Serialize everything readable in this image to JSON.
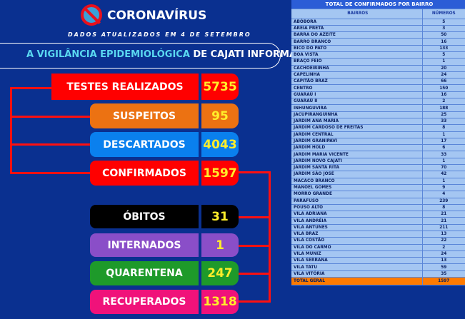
{
  "header": {
    "title": "CORONAVÍRUS",
    "subtitle": "DADOS ATUALIZADOS EM 4 DE SETEMBRO",
    "banner_highlight": "A VIGILÂNCIA EPIDEMIOLÓGICA",
    "banner_rest": " DE CAJATI INFORMA:"
  },
  "stats": [
    {
      "label": "TESTES REALIZADOS",
      "value": "5735",
      "color": "#ff0000"
    },
    {
      "label": "SUSPEITOS",
      "value": "95",
      "color": "#ec7212"
    },
    {
      "label": "DESCARTADOS",
      "value": "4043",
      "color": "#0a80ee"
    },
    {
      "label": "CONFIRMADOS",
      "value": "1597",
      "color": "#ff0000"
    },
    {
      "label": "ÓBITOS",
      "value": "31",
      "color": "#000000"
    },
    {
      "label": "INTERNADOS",
      "value": "1",
      "color": "#8a4ec8"
    },
    {
      "label": "QUARENTENA",
      "value": "247",
      "color": "#1e9a2a"
    },
    {
      "label": "RECUPERADOS",
      "value": "1318",
      "color": "#f0127a"
    }
  ],
  "table": {
    "title": "TOTAL DE CONFIRMADOS POR BAIRRO",
    "col_name": "BAIRROS",
    "col_num": "NÚMEROS",
    "rows": [
      [
        "ABÓBORA",
        "5"
      ],
      [
        "AREIA PRETA",
        "3"
      ],
      [
        "BARRA DO AZEITE",
        "50"
      ],
      [
        "BARRO BRANCO",
        "16"
      ],
      [
        "BICO DO PATO",
        "133"
      ],
      [
        "BOA VISTA",
        "5"
      ],
      [
        "BRAÇO FEIO",
        "1"
      ],
      [
        "CACHOEIRINHA",
        "20"
      ],
      [
        "CAPELINHA",
        "24"
      ],
      [
        "CAPITÃO BRAZ",
        "66"
      ],
      [
        "CENTRO",
        "150"
      ],
      [
        "GUARAÚ I",
        "16"
      ],
      [
        "GUARAÚ II",
        "2"
      ],
      [
        "INHUNGUVIRA",
        "188"
      ],
      [
        "JACUPIRANGUINHA",
        "25"
      ],
      [
        "JARDIM ANA MARIA",
        "33"
      ],
      [
        "JARDIM CARDOSO DE FREITAS",
        "8"
      ],
      [
        "JARDIM CENTRAL",
        "1"
      ],
      [
        "JARDIM GRANIPAVI",
        "17"
      ],
      [
        "JARDIM HOLD",
        "6"
      ],
      [
        "JARDIM MARIA VICENTE",
        "33"
      ],
      [
        "JARDIM NOVO CAJATI",
        "1"
      ],
      [
        "JARDIM SANTA RITA",
        "70"
      ],
      [
        "JARDIM SÃO JOSÉ",
        "42"
      ],
      [
        "MACACO BRANCO",
        "1"
      ],
      [
        "MANOEL GOMES",
        "9"
      ],
      [
        "MORRO GRANDE",
        "4"
      ],
      [
        "PARAFUSO",
        "239"
      ],
      [
        "POUSO ALTO",
        "8"
      ],
      [
        "VILA ADRIANA",
        "21"
      ],
      [
        "VILA ANDRÉIA",
        "21"
      ],
      [
        "VILA ANTUNES",
        "211"
      ],
      [
        "VILA BRAZ",
        "13"
      ],
      [
        "VILA COSTÃO",
        "22"
      ],
      [
        "VILA DO CARMO",
        "2"
      ],
      [
        "VILA MUNIZ",
        "24"
      ],
      [
        "VILA SERRANA",
        "13"
      ],
      [
        "VILA TATU",
        "59"
      ],
      [
        "VILA VITÓRIA",
        "35"
      ]
    ],
    "total_label": "TOTAL GERAL",
    "total_value": "1597"
  }
}
